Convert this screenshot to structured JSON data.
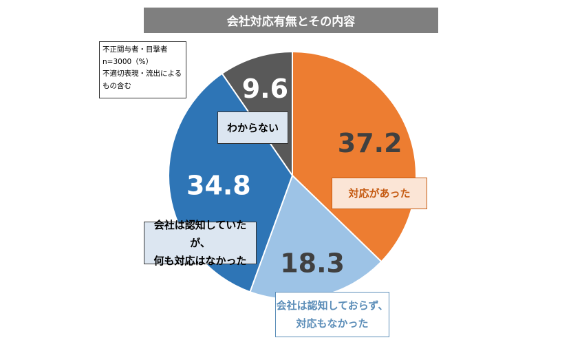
{
  "title": "会社対応有無とその内容",
  "note": {
    "lines": [
      "不正閲与者・目撃者",
      "n=3000（%）",
      "不適切表現・流出による",
      "もの含む"
    ]
  },
  "chart_data": {
    "type": "pie",
    "title": "会社対応有無とその内容",
    "unit": "%",
    "slices": [
      {
        "label": "対応があった",
        "value": 37.2,
        "value_label": "37.2",
        "color": "#ed7d31",
        "value_color": "#404040"
      },
      {
        "label": "会社は認知しておらず、対応もなかった",
        "value": 18.3,
        "value_label": "18.3",
        "color": "#9dc3e6",
        "value_color": "#404040"
      },
      {
        "label": "会社は認知していたが、何も対応はなかった",
        "value": 34.8,
        "value_label": "34.8",
        "color": "#2e75b6",
        "value_color": "#ffffff"
      },
      {
        "label": "わからない",
        "value": 9.6,
        "value_label": "9.6",
        "color": "#595959",
        "value_color": "#ffffff"
      }
    ]
  },
  "labels": {
    "unknown": "わからない",
    "responded": "対応があった",
    "none_line1": "会社は認知していたが、",
    "none_line2": "何も対応はなかった",
    "unaware_line1": "会社は認知しておらず、",
    "unaware_line2": "対応もなかった"
  }
}
